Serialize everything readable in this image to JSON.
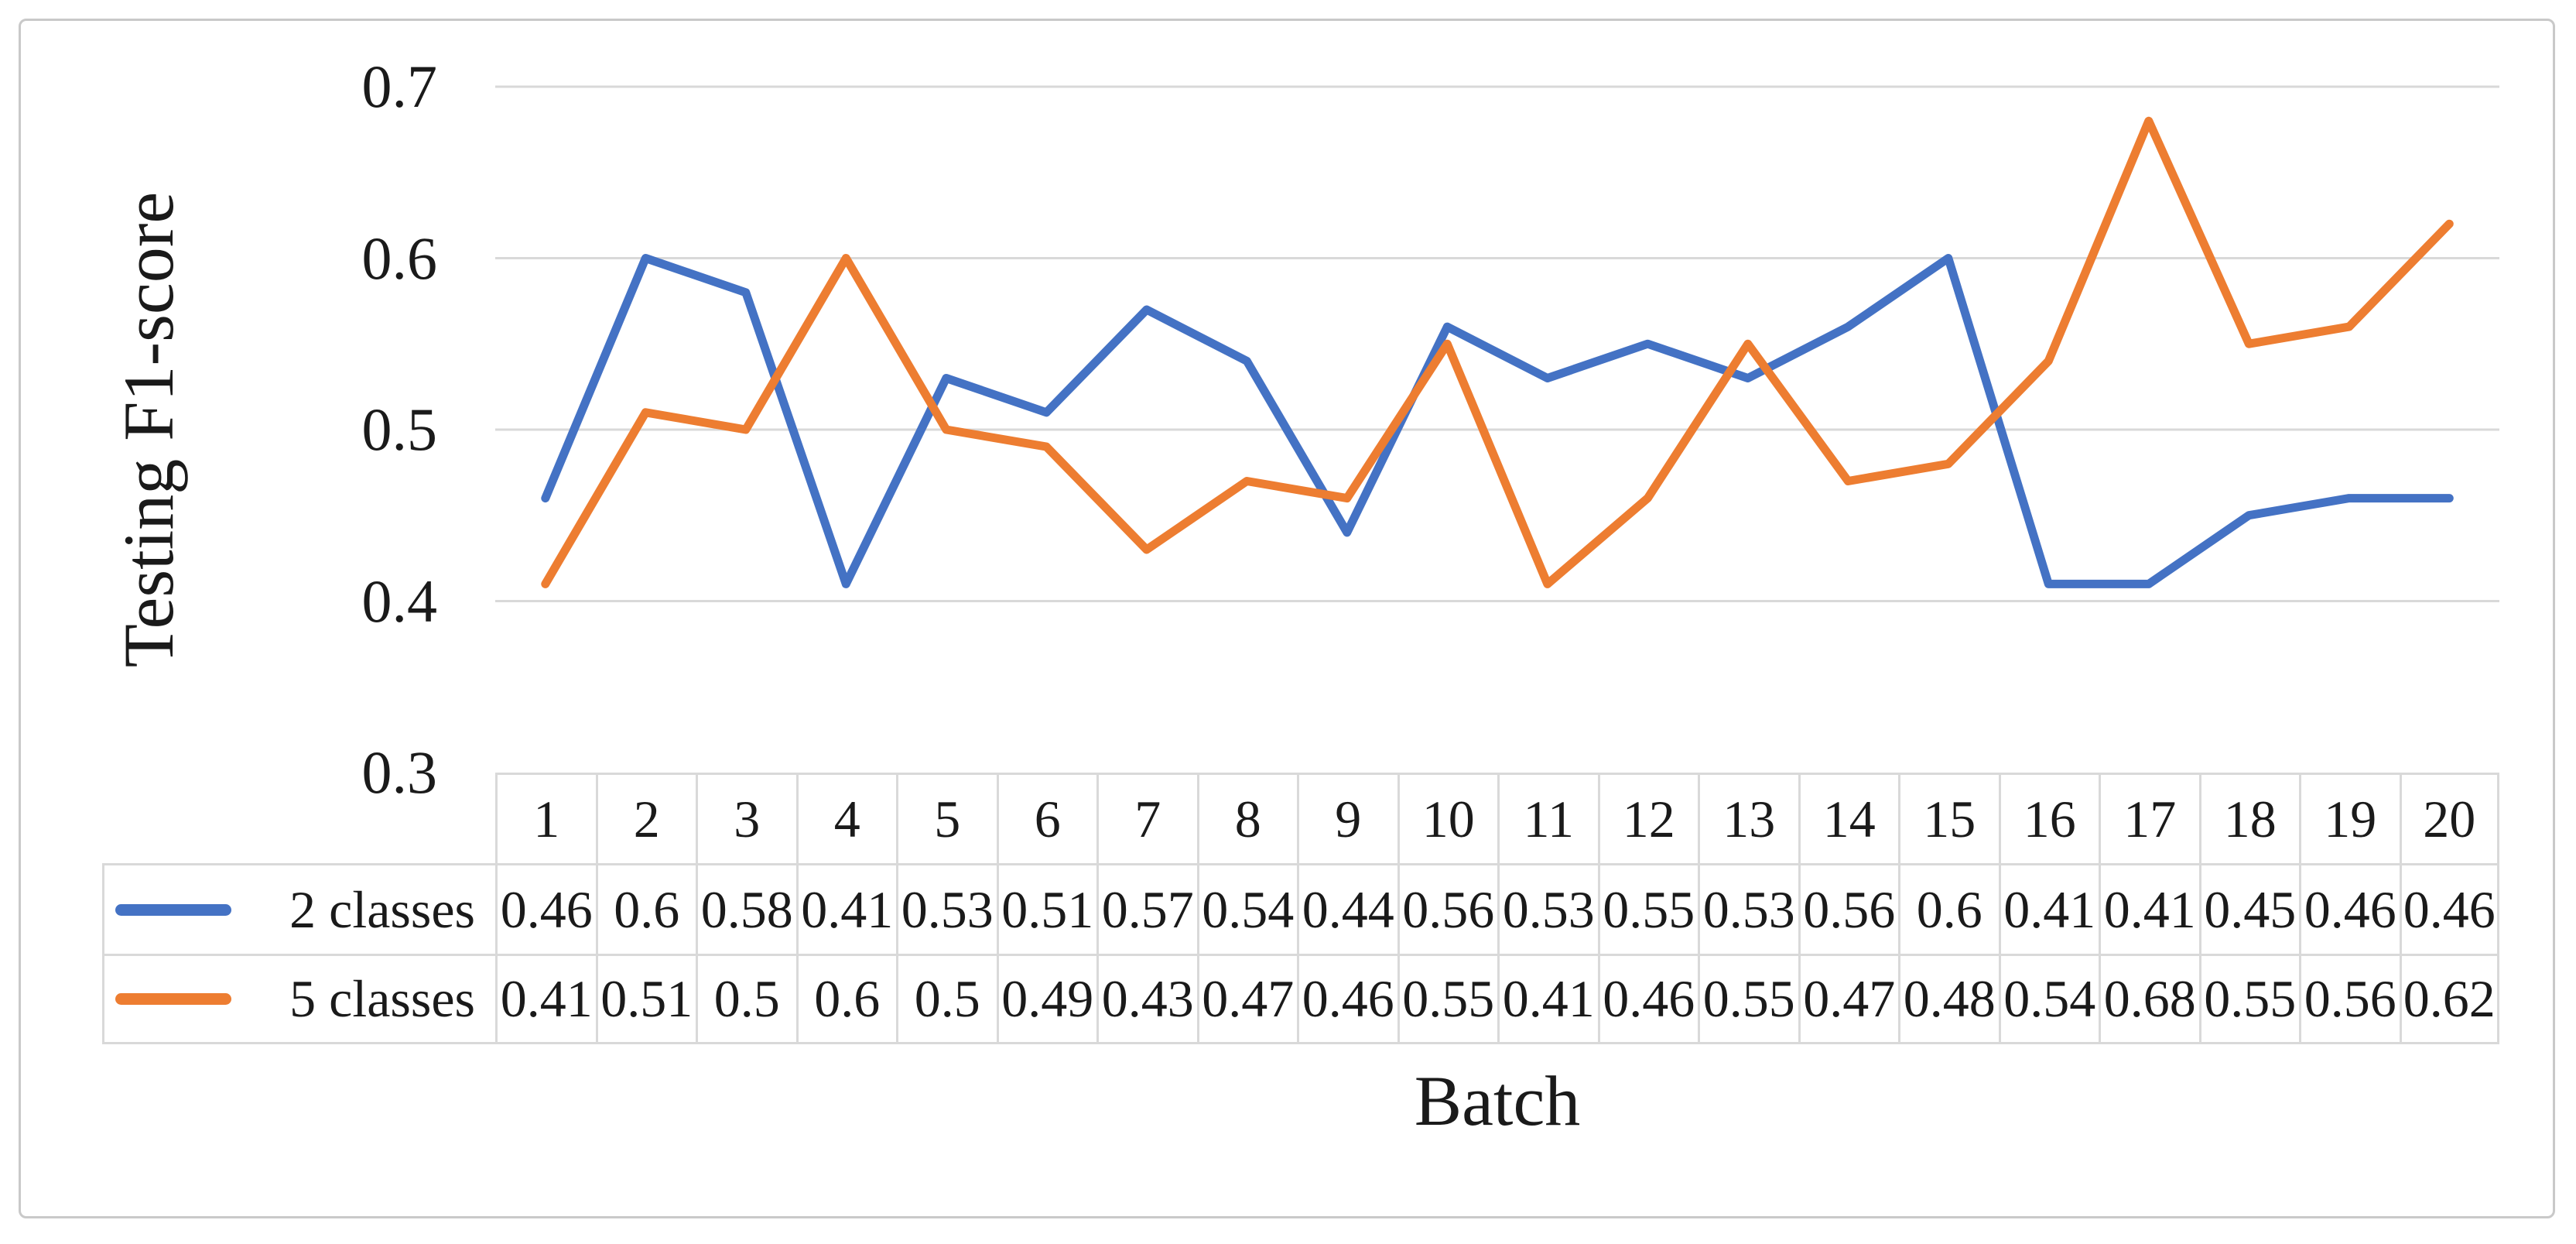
{
  "chart_data": {
    "type": "line",
    "title": "",
    "xlabel": "Batch",
    "ylabel": "Testing F1-score",
    "categories": [
      "1",
      "2",
      "3",
      "4",
      "5",
      "6",
      "7",
      "8",
      "9",
      "10",
      "11",
      "12",
      "13",
      "14",
      "15",
      "16",
      "17",
      "18",
      "19",
      "20"
    ],
    "series": [
      {
        "name": "2 classes",
        "color": "#4472C4",
        "values": [
          0.46,
          0.6,
          0.58,
          0.41,
          0.53,
          0.51,
          0.57,
          0.54,
          0.44,
          0.56,
          0.53,
          0.55,
          0.53,
          0.56,
          0.6,
          0.41,
          0.41,
          0.45,
          0.46,
          0.46
        ]
      },
      {
        "name": "5 classes",
        "color": "#ED7D31",
        "values": [
          0.41,
          0.51,
          0.5,
          0.6,
          0.5,
          0.49,
          0.43,
          0.47,
          0.46,
          0.55,
          0.41,
          0.46,
          0.55,
          0.47,
          0.48,
          0.54,
          0.68,
          0.55,
          0.56,
          0.62
        ]
      }
    ],
    "ylim": [
      0.3,
      0.7
    ],
    "ytick_labels": [
      "0.7",
      "0.6",
      "0.5",
      "0.4",
      "0.3"
    ],
    "gridline_values": [
      0.7,
      0.6,
      0.5,
      0.4
    ],
    "grid": "horizontal",
    "legend_position": "data-table-left",
    "data_table": true,
    "colors": {
      "gridline": "#D9D9D9",
      "table_border": "#D9D9D9",
      "text": "#1a1a1a",
      "frame_border": "#C9C9C9",
      "background": "#ffffff"
    }
  }
}
